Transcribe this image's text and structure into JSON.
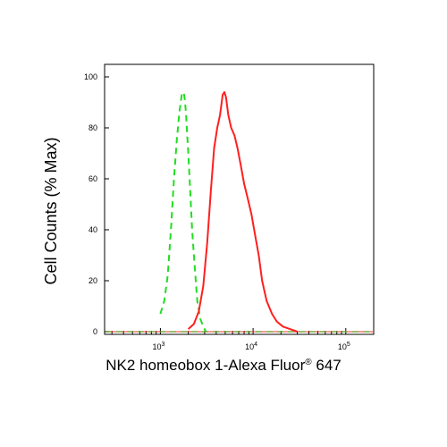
{
  "chart_data": {
    "type": "line",
    "xlabel": "NK2 homeobox 1-Alexa Fluor",
    "xlabel_superscript": "®",
    "xlabel_suffix": " 647",
    "ylabel": "Cell Counts (% Max)",
    "x_scale": "log",
    "xlim": [
      250,
      200000
    ],
    "ylim": [
      0,
      100
    ],
    "y_ticks": [
      0,
      20,
      40,
      60,
      80,
      100
    ],
    "x_ticks": [
      {
        "value": 1000,
        "base": "10",
        "exp": "3"
      },
      {
        "value": 10000,
        "base": "10",
        "exp": "4"
      },
      {
        "value": 100000,
        "base": "10",
        "exp": "5"
      }
    ],
    "grid": false,
    "series": [
      {
        "style": "dashed",
        "color": "#22dd22",
        "x": [
          1000,
          1100,
          1200,
          1300,
          1400,
          1500,
          1600,
          1700,
          1750,
          1800,
          1850,
          1900,
          2000,
          2100,
          2200,
          2350,
          2500,
          2700,
          2900,
          3100
        ],
        "y": [
          7,
          12,
          22,
          40,
          60,
          75,
          86,
          93,
          94,
          93,
          90,
          84,
          70,
          55,
          40,
          25,
          12,
          5,
          2,
          0
        ]
      },
      {
        "style": "solid",
        "color": "#ff1f1f",
        "x": [
          2000,
          2300,
          2600,
          2900,
          3200,
          3500,
          3800,
          4100,
          4400,
          4700,
          4900,
          5100,
          5400,
          5800,
          6300,
          6800,
          7400,
          8000,
          8800,
          9600,
          10500,
          11500,
          12500,
          14000,
          16000,
          18000,
          21000,
          25000,
          30000
        ],
        "y": [
          1,
          3,
          8,
          18,
          35,
          55,
          72,
          80,
          85,
          93,
          94,
          92,
          85,
          80,
          77,
          72,
          65,
          58,
          52,
          46,
          38,
          30,
          20,
          12,
          7,
          4,
          2,
          1,
          0
        ]
      }
    ]
  }
}
